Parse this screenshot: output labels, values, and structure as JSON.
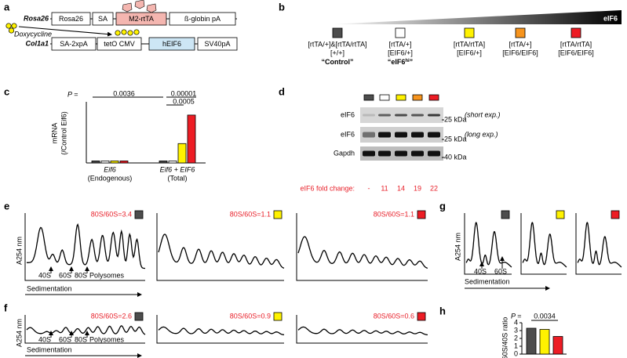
{
  "panel_a": {
    "letter": "a",
    "row1_label": "Rosa26",
    "row1_boxes": [
      "Rosa26",
      "SA",
      "M2-rtTA",
      "ß-globin pA"
    ],
    "row2_label": "Col1a1",
    "row2_boxes": [
      "SA-2xpA",
      "tetO CMV",
      "hEIF6",
      "SV40pA"
    ],
    "inducer": "Doxycycline"
  },
  "panel_b": {
    "letter": "b",
    "gradient_label": "eIF6",
    "genotypes": [
      {
        "line1": "[rtTA/+]&[rtTA/rtTA]",
        "line2": "[+/+]",
        "name": "“Control”",
        "color": "#4d4d4d"
      },
      {
        "line1": "[rtTA/+]",
        "line2": "[EIF6/+]",
        "name": "“eIF6",
        "name_sup": "hi",
        "name_end": "”",
        "color": "#ffffff"
      },
      {
        "line1": "[rtTA/rtTA]",
        "line2": "[EIF6/+]",
        "color": "#fff200"
      },
      {
        "line1": "[rtTA/+]",
        "line2": "[EIF6/EIF6]",
        "color": "#f7941d"
      },
      {
        "line1": "[rtTA/rtTA]",
        "line2": "[EIF6/EIF6]",
        "color": "#ed1c24"
      }
    ]
  },
  "panel_c": {
    "letter": "c",
    "type": "bar",
    "ylabel": "mRNA",
    "ylabel2": "(/Control Eif6)",
    "groups": [
      {
        "name": "Eif6",
        "sub": "(Endogenous)"
      },
      {
        "name": "Eif6 + EIF6",
        "sub": "(Total)"
      }
    ],
    "series": [
      {
        "color": "#4d4d4d",
        "values": [
          1,
          1
        ]
      },
      {
        "color": "#ffffff",
        "values": [
          1,
          1
        ]
      },
      {
        "color": "#fff200",
        "values": [
          1,
          9.5
        ]
      },
      {
        "color": "#ed1c24",
        "values": [
          1,
          23.5
        ]
      }
    ],
    "ylim": [
      0,
      30
    ],
    "p_prefix": "P =",
    "p_values": [
      0.0036,
      0.0005,
      1e-05
    ]
  },
  "panel_d": {
    "letter": "d",
    "rows": [
      {
        "label": "eIF6",
        "size": "25 kDa",
        "note": "(short exp.)"
      },
      {
        "label": "eIF6",
        "size": "25 kDa",
        "note": "(long exp.)"
      },
      {
        "label": "Gapdh",
        "size": "40 kDa"
      }
    ],
    "fold_label": "eIF6 fold change:",
    "fold_changes": [
      "-",
      11,
      14,
      19,
      22
    ]
  },
  "panel_e": {
    "letter": "e",
    "ratios": [
      {
        "label": "80S/60S=3.4",
        "color": "#4d4d4d"
      },
      {
        "label": "80S/60S=1.1",
        "color": "#fff200"
      },
      {
        "label": "80S/60S=1.1",
        "color": "#ed1c24"
      }
    ],
    "ylabel": "A254 nm",
    "peaks": [
      "40S",
      "60S",
      "80S",
      "Polysomes"
    ],
    "xlabel": "Sedimentation"
  },
  "panel_f": {
    "letter": "f",
    "ratios": [
      {
        "label": "80S/60S=2.6",
        "color": "#4d4d4d"
      },
      {
        "label": "80S/60S=0.9",
        "color": "#fff200"
      },
      {
        "label": "80S/60S=0.6",
        "color": "#ed1c24"
      }
    ],
    "ylabel": "A254 nm",
    "peaks": [
      "40S",
      "60S",
      "80S",
      "Polysomes"
    ],
    "xlabel": "Sedimentation"
  },
  "panel_g": {
    "letter": "g",
    "colors": [
      "#4d4d4d",
      "#fff200",
      "#ed1c24"
    ],
    "ylabel": "A254 nm",
    "peaks": [
      "40S",
      "60S"
    ],
    "xlabel": "Sedimentation"
  },
  "panel_h": {
    "letter": "h",
    "type": "bar",
    "ylabel": "60S/40S ratio",
    "colors": [
      "#4d4d4d",
      "#fff200",
      "#ed1c24"
    ],
    "values": [
      3.3,
      3.15,
      2.25
    ],
    "ylim": [
      0,
      4
    ],
    "yticks": [
      0,
      1,
      2,
      3,
      4
    ],
    "p_prefix": "P =",
    "p_value": 0.0034
  }
}
